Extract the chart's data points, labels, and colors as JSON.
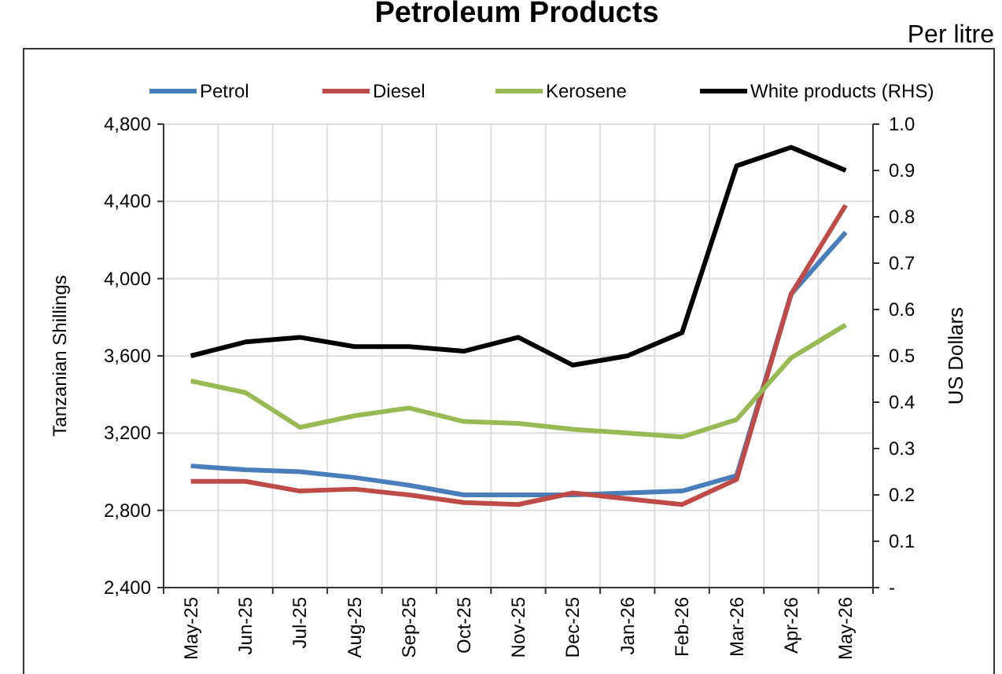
{
  "chart_data": {
    "type": "line",
    "title": "Petroleum Products",
    "subtitle": "Per litre",
    "ylabel": "Tanzanian Shillings",
    "y2label": "US Dollars",
    "categories": [
      "May-25",
      "Jun-25",
      "Jul-25",
      "Aug-25",
      "Sep-25",
      "Oct-25",
      "Nov-25",
      "Dec-25",
      "Jan-26",
      "Feb-26",
      "Mar-26",
      "Apr-26",
      "May-26"
    ],
    "series": [
      {
        "name": "Petrol",
        "color": "#4a7ebb",
        "values": [
          3030,
          3010,
          3000,
          2970,
          2930,
          2880,
          2880,
          2880,
          2890,
          2900,
          2980,
          3920,
          4240
        ]
      },
      {
        "name": "Diesel",
        "color": "#be4b48",
        "values": [
          2950,
          2950,
          2900,
          2910,
          2880,
          2840,
          2830,
          2890,
          2860,
          2830,
          2960,
          3920,
          4380
        ]
      },
      {
        "name": "Kerosene",
        "color": "#98b954",
        "values": [
          3470,
          3410,
          3230,
          3290,
          3330,
          3260,
          3250,
          3220,
          3200,
          3180,
          3270,
          3590,
          3760
        ]
      },
      {
        "name": "White products (RHS)",
        "color": "#000000",
        "axis": "y2",
        "values": [
          0.5,
          0.53,
          0.54,
          0.52,
          0.52,
          0.51,
          0.54,
          0.48,
          0.5,
          0.55,
          0.91,
          0.95,
          0.9
        ]
      }
    ],
    "ylim": [
      2400,
      4800
    ],
    "yticks": [
      {
        "value": 2400,
        "label": "2,400"
      },
      {
        "value": 2800,
        "label": "2,800"
      },
      {
        "value": 3200,
        "label": "3,200"
      },
      {
        "value": 3600,
        "label": "3,600"
      },
      {
        "value": 4000,
        "label": "4,000"
      },
      {
        "value": 4400,
        "label": "4,400"
      },
      {
        "value": 4800,
        "label": "4,800"
      }
    ],
    "y2lim": [
      0,
      1
    ],
    "y2ticks": [
      {
        "value": 0,
        "label": "-"
      },
      0.1,
      0.2,
      0.3,
      0.4,
      0.5,
      0.6,
      0.7,
      0.8,
      0.9,
      {
        "value": 1,
        "label": "1.0"
      }
    ],
    "grid": true,
    "legend": "top",
    "line_style": "solid",
    "marker": "none"
  }
}
